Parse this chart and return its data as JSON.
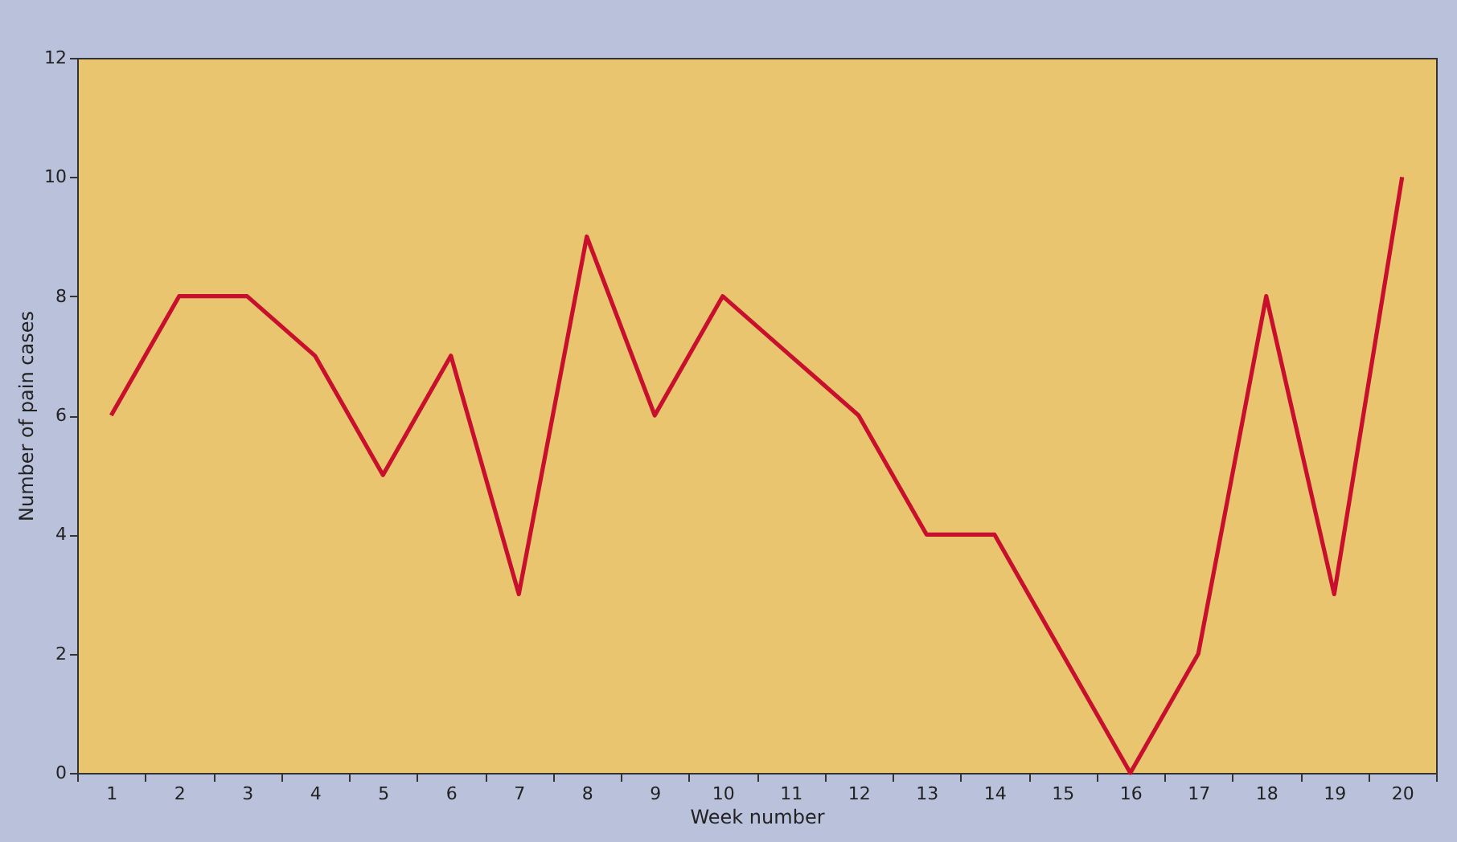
{
  "chart_data": {
    "type": "line",
    "xlabel": "Week number",
    "ylabel": "Number of pain cases",
    "x": [
      1,
      2,
      3,
      4,
      5,
      6,
      7,
      8,
      9,
      10,
      11,
      12,
      13,
      14,
      15,
      16,
      17,
      18,
      19,
      20
    ],
    "series": [
      {
        "color": "#c8102e",
        "values": [
          6,
          8,
          8,
          7,
          5,
          7,
          3,
          9,
          6,
          8,
          7,
          6,
          4,
          4,
          2,
          0,
          2,
          8,
          3,
          10
        ]
      }
    ],
    "xlim": [
      0.5,
      20.5
    ],
    "xticks": [
      1,
      2,
      3,
      4,
      5,
      6,
      7,
      8,
      9,
      10,
      11,
      12,
      13,
      14,
      15,
      16,
      17,
      18,
      19,
      20,
      {
        "value": 0.5,
        "label": null
      },
      {
        "value": 1.5,
        "label": null
      },
      {
        "value": 2.5,
        "label": null
      },
      {
        "value": 3.5,
        "label": null
      },
      {
        "value": 4.5,
        "label": null
      },
      {
        "value": 5.5,
        "label": null
      },
      {
        "value": 6.5,
        "label": null
      },
      {
        "value": 7.5,
        "label": null
      },
      {
        "value": 8.5,
        "label": null
      },
      {
        "value": 9.5,
        "label": null
      },
      {
        "value": 10.5,
        "label": null
      },
      {
        "value": 11.5,
        "label": null
      },
      {
        "value": 12.5,
        "label": null
      },
      {
        "value": 13.5,
        "label": null
      },
      {
        "value": 14.5,
        "label": null
      },
      {
        "value": 15.5,
        "label": null
      },
      {
        "value": 16.5,
        "label": null
      },
      {
        "value": 17.5,
        "label": null
      },
      {
        "value": 18.5,
        "label": null
      },
      {
        "value": 19.5,
        "label": null
      },
      {
        "value": 20.5,
        "label": null
      }
    ],
    "ylim": [
      0,
      12
    ],
    "yticks": [
      0,
      2,
      4,
      6,
      8,
      10,
      12
    ],
    "line_style": "solid",
    "grid": false
  }
}
